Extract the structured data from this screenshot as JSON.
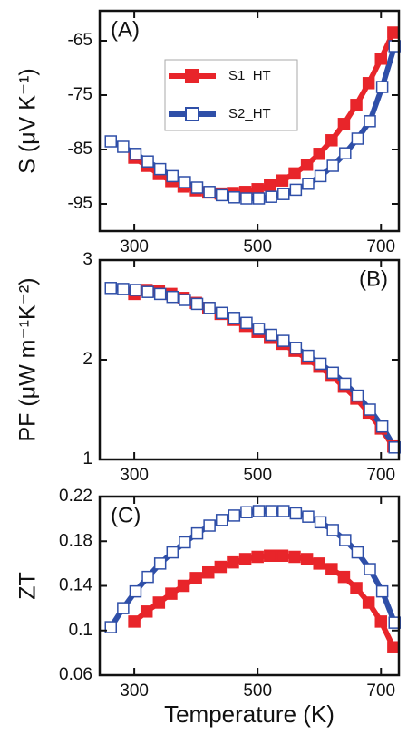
{
  "chart_data": [
    {
      "type": "line",
      "panel_label": "(A)",
      "y_label": "S (μV K⁻¹)",
      "xlim": [
        244,
        729
      ],
      "xticks": [
        300,
        500,
        700
      ],
      "ylim": [
        -100,
        -59.5
      ],
      "yticks": [
        -95,
        -85,
        -75,
        -65
      ],
      "legend": "upper center",
      "series": [
        {
          "name": "S1_HT",
          "color": "#e8252a",
          "marker_face": "#e8252a",
          "x": [
            300,
            320,
            340,
            360,
            380,
            400,
            420,
            440,
            460,
            480,
            500,
            520,
            540,
            560,
            580,
            600,
            620,
            640,
            660,
            680,
            700,
            720
          ],
          "values": [
            -86.5,
            -88,
            -89.5,
            -90.8,
            -91.8,
            -92.5,
            -92.9,
            -93.1,
            -93,
            -92.8,
            -92.3,
            -91.6,
            -90.7,
            -89.4,
            -87.8,
            -85.8,
            -83.3,
            -80.3,
            -76.8,
            -72.8,
            -68.3,
            -63.5
          ]
        },
        {
          "name": "S2_HT",
          "color": "#2f4fa8",
          "marker_face": "#ffffff",
          "x": [
            262,
            282,
            302,
            322,
            342,
            362,
            382,
            402,
            422,
            442,
            462,
            482,
            502,
            522,
            542,
            562,
            582,
            602,
            622,
            642,
            662,
            682,
            702,
            722
          ],
          "values": [
            -83.5,
            -84.5,
            -85.8,
            -87.2,
            -88.6,
            -89.9,
            -91,
            -92,
            -92.8,
            -93.4,
            -93.8,
            -94,
            -94,
            -93.7,
            -93.2,
            -92.4,
            -91.3,
            -89.9,
            -88,
            -85.7,
            -83,
            -79.8,
            -73.5,
            -66
          ]
        }
      ]
    },
    {
      "type": "line",
      "panel_label": "(B)",
      "y_label": "PF (μW m⁻¹K⁻²)",
      "xlim": [
        244,
        729
      ],
      "xticks": [
        300,
        500,
        700
      ],
      "ylim": [
        1,
        3
      ],
      "yticks": [
        1,
        2,
        3
      ],
      "series": [
        {
          "color": "#e8252a",
          "marker_face": "#e8252a",
          "x": [
            300,
            320,
            340,
            360,
            380,
            400,
            420,
            440,
            460,
            480,
            500,
            520,
            540,
            560,
            580,
            600,
            620,
            640,
            660,
            680,
            700,
            720
          ],
          "values": [
            2.66,
            2.7,
            2.69,
            2.66,
            2.62,
            2.57,
            2.52,
            2.46,
            2.4,
            2.34,
            2.28,
            2.22,
            2.16,
            2.09,
            2.01,
            1.93,
            1.84,
            1.73,
            1.61,
            1.47,
            1.31,
            1.13
          ]
        },
        {
          "color": "#2f4fa8",
          "marker_face": "#ffffff",
          "x": [
            262,
            282,
            302,
            322,
            342,
            362,
            382,
            402,
            422,
            442,
            462,
            482,
            502,
            522,
            542,
            562,
            582,
            602,
            622,
            642,
            662,
            682,
            702,
            722
          ],
          "values": [
            2.72,
            2.71,
            2.7,
            2.68,
            2.66,
            2.63,
            2.6,
            2.56,
            2.52,
            2.47,
            2.42,
            2.37,
            2.31,
            2.25,
            2.19,
            2.12,
            2.04,
            1.96,
            1.87,
            1.76,
            1.64,
            1.5,
            1.33,
            1.12
          ]
        }
      ]
    },
    {
      "type": "line",
      "panel_label": "(C)",
      "y_label": "ZT",
      "x_label": "Temperature (K)",
      "xlim": [
        244,
        729
      ],
      "xticks": [
        300,
        500,
        700
      ],
      "ylim": [
        0.06,
        0.22
      ],
      "yticks": [
        0.06,
        0.1,
        0.14,
        0.18,
        0.22
      ],
      "series": [
        {
          "color": "#e8252a",
          "marker_face": "#e8252a",
          "x": [
            300,
            320,
            340,
            360,
            380,
            400,
            420,
            440,
            460,
            480,
            500,
            520,
            540,
            560,
            580,
            600,
            620,
            640,
            660,
            680,
            700,
            720
          ],
          "values": [
            0.108,
            0.117,
            0.125,
            0.133,
            0.14,
            0.147,
            0.152,
            0.157,
            0.161,
            0.164,
            0.166,
            0.167,
            0.167,
            0.166,
            0.164,
            0.16,
            0.155,
            0.148,
            0.138,
            0.125,
            0.108,
            0.085
          ]
        },
        {
          "color": "#2f4fa8",
          "marker_face": "#ffffff",
          "x": [
            262,
            282,
            302,
            322,
            342,
            362,
            382,
            402,
            422,
            442,
            462,
            482,
            502,
            522,
            542,
            562,
            582,
            602,
            622,
            642,
            662,
            682,
            702,
            722
          ],
          "values": [
            0.103,
            0.12,
            0.135,
            0.148,
            0.16,
            0.17,
            0.179,
            0.187,
            0.194,
            0.199,
            0.203,
            0.206,
            0.207,
            0.207,
            0.207,
            0.205,
            0.202,
            0.197,
            0.19,
            0.181,
            0.17,
            0.155,
            0.135,
            0.107
          ]
        }
      ]
    }
  ]
}
